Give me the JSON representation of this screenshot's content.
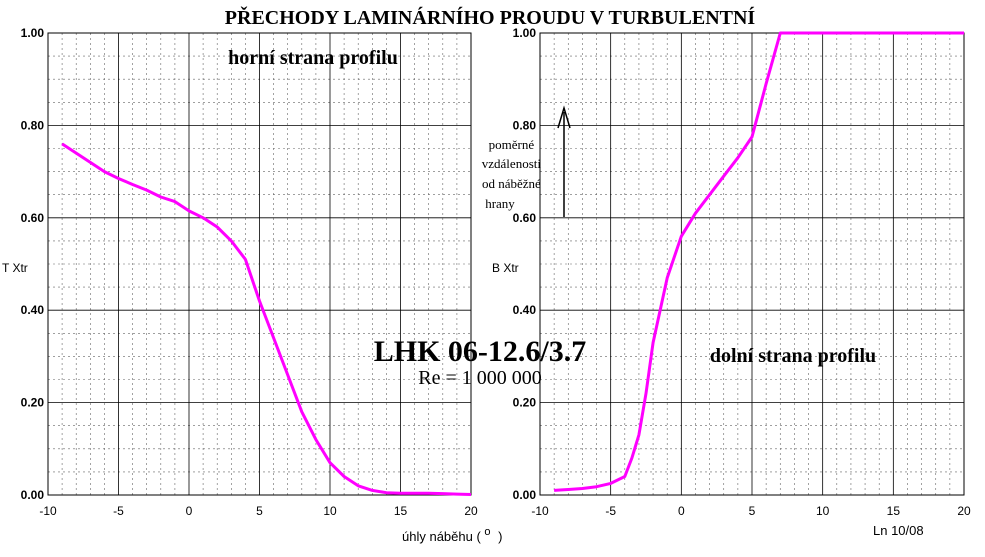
{
  "figure": {
    "title": "PŘECHODY LAMINÁRNÍHO PROUDU V TURBULENTNÍ",
    "airfoil_label": "LHK 06-12.6/3.7",
    "reynolds_label": "Re = 1 000 000",
    "xlabel_text": "úhly náběhu  (",
    "xlabel_unit": "o",
    "xlabel_close": ")",
    "credit": "Ln 10/08",
    "arrow_caption": [
      "poměrné",
      "vzdálenosti",
      "od náběžné",
      "hrany"
    ]
  },
  "chart_data": [
    {
      "type": "line",
      "title": "horní strana profilu",
      "xlabel": "",
      "ylabel": "T Xtr",
      "xlim": [
        -10,
        20
      ],
      "ylim": [
        0,
        1
      ],
      "x_ticks": [
        "-10",
        "-5",
        "0",
        "5",
        "10",
        "15",
        "20"
      ],
      "y_ticks": [
        "0.00",
        "0.20",
        "0.40",
        "0.60",
        "0.80",
        "1.00"
      ],
      "grid": true,
      "line_color": "#ff00ff",
      "series": [
        {
          "x": [
            -9,
            -8,
            -7,
            -6,
            -5,
            -4,
            -3,
            -2,
            -1,
            0,
            1,
            2,
            3,
            4,
            5,
            6,
            7,
            8,
            9,
            10,
            11,
            12,
            13,
            14,
            15,
            16,
            17,
            18,
            19,
            20
          ],
          "y": [
            0.76,
            0.74,
            0.72,
            0.7,
            0.685,
            0.672,
            0.66,
            0.645,
            0.635,
            0.615,
            0.6,
            0.58,
            0.55,
            0.51,
            0.42,
            0.34,
            0.26,
            0.18,
            0.12,
            0.07,
            0.04,
            0.02,
            0.01,
            0.005,
            0.004,
            0.004,
            0.004,
            0.003,
            0.002,
            0.001
          ]
        }
      ]
    },
    {
      "type": "line",
      "title": "dolní strana profilu",
      "xlabel": "",
      "ylabel": "B Xtr",
      "xlim": [
        -10,
        20
      ],
      "ylim": [
        0,
        1
      ],
      "x_ticks": [
        "-10",
        "-5",
        "0",
        "5",
        "10",
        "15",
        "20"
      ],
      "y_ticks": [
        "0.00",
        "0.20",
        "0.40",
        "0.60",
        "0.80",
        "1.00"
      ],
      "grid": true,
      "line_color": "#ff00ff",
      "series": [
        {
          "x": [
            -9,
            -8,
            -7,
            -6,
            -5,
            -4,
            -3.5,
            -3,
            -2.5,
            -2,
            -1,
            0,
            1,
            2,
            3,
            4,
            5,
            6,
            7,
            8,
            10,
            12,
            14,
            16,
            18,
            20
          ],
          "y": [
            0.01,
            0.012,
            0.014,
            0.018,
            0.025,
            0.04,
            0.08,
            0.13,
            0.22,
            0.33,
            0.47,
            0.56,
            0.61,
            0.65,
            0.69,
            0.73,
            0.775,
            0.89,
            1.0,
            1.0,
            1.0,
            1.0,
            1.0,
            1.0,
            1.0,
            1.0
          ]
        }
      ]
    }
  ]
}
